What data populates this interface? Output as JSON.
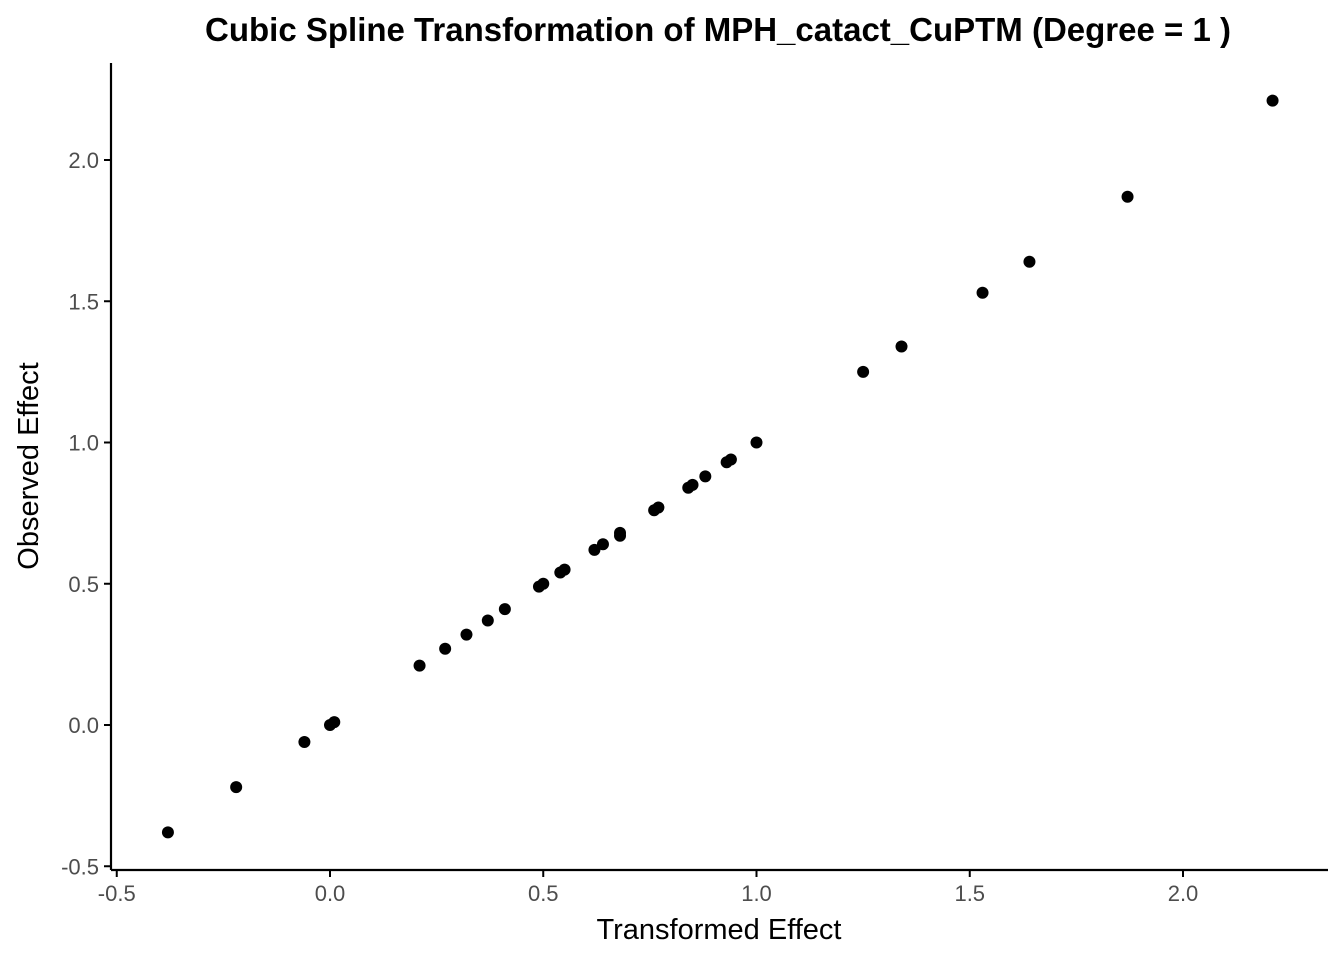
{
  "chart_data": {
    "type": "scatter",
    "title": "Cubic Spline Transformation of MPH_catact_CuPTM (Degree = 1 )",
    "xlabel": "Transformed Effect",
    "ylabel": "Observed Effect",
    "xlim": [
      -0.5,
      2.35
    ],
    "ylim": [
      -0.5,
      2.3
    ],
    "x_ticks": [
      -0.5,
      0.0,
      0.5,
      1.0,
      1.5,
      2.0
    ],
    "x_tick_labels": [
      "-0.5",
      "0.0",
      "0.5",
      "1.0",
      "1.5",
      "2.0"
    ],
    "y_ticks": [
      -0.5,
      0.0,
      0.5,
      1.0,
      1.5,
      2.0
    ],
    "y_tick_labels": [
      "-0.5",
      "0.0",
      "0.5",
      "1.0",
      "1.5",
      "2.0"
    ],
    "grid": false,
    "point_color": "#000000",
    "axis_color": "#000000",
    "tick_label_color": "#4d4d4d",
    "points": [
      {
        "x": -0.38,
        "y": -0.38
      },
      {
        "x": -0.22,
        "y": -0.22
      },
      {
        "x": -0.06,
        "y": -0.06
      },
      {
        "x": 0.0,
        "y": 0.0
      },
      {
        "x": 0.01,
        "y": 0.01
      },
      {
        "x": 0.21,
        "y": 0.21
      },
      {
        "x": 0.27,
        "y": 0.27
      },
      {
        "x": 0.32,
        "y": 0.32
      },
      {
        "x": 0.37,
        "y": 0.37
      },
      {
        "x": 0.41,
        "y": 0.41
      },
      {
        "x": 0.49,
        "y": 0.49
      },
      {
        "x": 0.5,
        "y": 0.5
      },
      {
        "x": 0.54,
        "y": 0.54
      },
      {
        "x": 0.55,
        "y": 0.55
      },
      {
        "x": 0.62,
        "y": 0.62
      },
      {
        "x": 0.64,
        "y": 0.64
      },
      {
        "x": 0.68,
        "y": 0.67
      },
      {
        "x": 0.68,
        "y": 0.68
      },
      {
        "x": 0.76,
        "y": 0.76
      },
      {
        "x": 0.77,
        "y": 0.77
      },
      {
        "x": 0.84,
        "y": 0.84
      },
      {
        "x": 0.85,
        "y": 0.85
      },
      {
        "x": 0.88,
        "y": 0.88
      },
      {
        "x": 0.93,
        "y": 0.93
      },
      {
        "x": 0.94,
        "y": 0.94
      },
      {
        "x": 1.0,
        "y": 1.0
      },
      {
        "x": 1.25,
        "y": 1.25
      },
      {
        "x": 1.34,
        "y": 1.34
      },
      {
        "x": 1.53,
        "y": 1.53
      },
      {
        "x": 1.64,
        "y": 1.64
      },
      {
        "x": 1.87,
        "y": 1.87
      },
      {
        "x": 2.21,
        "y": 2.21
      }
    ]
  }
}
